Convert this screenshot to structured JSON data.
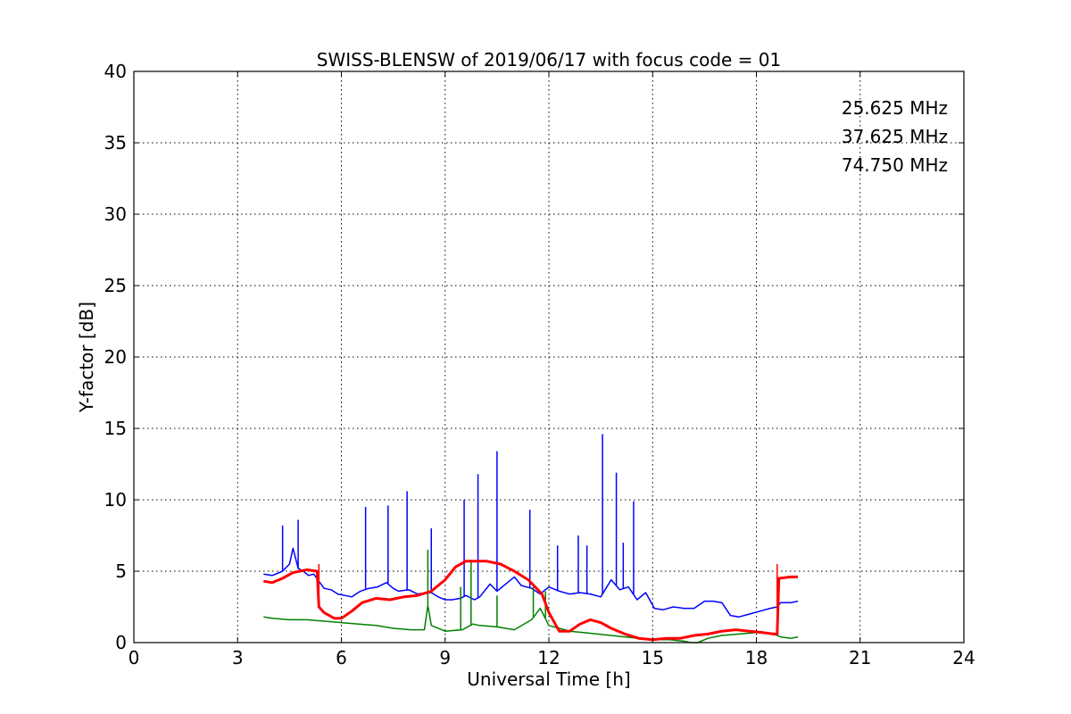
{
  "chart_data": {
    "type": "line",
    "title": "SWISS-BLENSW of 2019/06/17 with focus code = 01",
    "xlabel": "Universal Time [h]",
    "ylabel": "Y-factor [dB]",
    "xlim": [
      0,
      24
    ],
    "ylim": [
      0,
      40
    ],
    "xticks": [
      0,
      3,
      6,
      9,
      12,
      15,
      18,
      21,
      24
    ],
    "xtick_labels": [
      "0",
      "3",
      "6",
      "9",
      "12",
      "15",
      "18",
      "21",
      "24"
    ],
    "yticks": [
      0,
      5,
      10,
      15,
      20,
      25,
      30,
      35,
      40
    ],
    "ytick_labels": [
      "0",
      "5",
      "10",
      "15",
      "20",
      "25",
      "30",
      "35",
      "40"
    ],
    "grid": true,
    "legend_position": "top-right",
    "series": [
      {
        "name": "25.625 MHz",
        "color": "#0000ff",
        "x": [
          3.75,
          4.0,
          4.3,
          4.5,
          4.6,
          4.75,
          4.9,
          5.05,
          5.2,
          5.35,
          5.5,
          5.7,
          5.9,
          6.1,
          6.3,
          6.55,
          6.8,
          7.05,
          7.3,
          7.5,
          7.65,
          7.95,
          8.2,
          8.45,
          8.6,
          8.8,
          9.0,
          9.2,
          9.45,
          9.6,
          9.85,
          10.0,
          10.3,
          10.5,
          10.75,
          11.0,
          11.2,
          11.5,
          11.75,
          12.0,
          12.3,
          12.6,
          12.9,
          13.2,
          13.5,
          13.8,
          14.05,
          14.3,
          14.55,
          14.8,
          15.05,
          15.3,
          15.6,
          15.9,
          16.2,
          16.5,
          16.75,
          17.0,
          17.25,
          17.5,
          17.8,
          18.1,
          18.4,
          18.6,
          18.7,
          19.0,
          19.2
        ],
        "y": [
          4.8,
          4.7,
          5.0,
          5.5,
          6.6,
          5.2,
          5.0,
          4.7,
          4.8,
          4.3,
          3.8,
          3.7,
          3.4,
          3.3,
          3.2,
          3.6,
          3.8,
          3.9,
          4.2,
          3.8,
          3.6,
          3.7,
          3.4,
          3.5,
          3.5,
          3.2,
          3.0,
          3.0,
          3.1,
          3.3,
          3.0,
          3.2,
          4.1,
          3.6,
          4.1,
          4.6,
          4.0,
          3.8,
          3.4,
          3.9,
          3.6,
          3.4,
          3.5,
          3.4,
          3.2,
          4.4,
          3.7,
          3.9,
          3.0,
          3.5,
          2.4,
          2.3,
          2.5,
          2.4,
          2.4,
          2.9,
          2.9,
          2.8,
          1.9,
          1.8,
          2.0,
          2.2,
          2.4,
          2.5,
          2.8,
          2.8,
          2.9
        ],
        "spikes_x": [
          4.3,
          4.75,
          6.7,
          7.35,
          7.9,
          8.6,
          9.55,
          9.95,
          10.5,
          11.45,
          12.25,
          12.85,
          13.1,
          13.55,
          13.95,
          14.15,
          14.45
        ],
        "spikes_y": [
          8.2,
          8.6,
          9.5,
          9.6,
          10.6,
          8.0,
          10.0,
          11.8,
          13.4,
          9.3,
          6.8,
          7.5,
          6.8,
          14.6,
          11.9,
          7.0,
          9.9
        ]
      },
      {
        "name": "37.625 MHz",
        "color": "#008000",
        "x": [
          3.75,
          4.0,
          4.5,
          5.0,
          5.5,
          6.0,
          6.5,
          7.0,
          7.5,
          8.0,
          8.4,
          8.5,
          8.6,
          9.0,
          9.5,
          9.8,
          10.0,
          10.5,
          11.0,
          11.5,
          11.75,
          12.0,
          12.3,
          12.6,
          13.0,
          13.4,
          13.8,
          14.2,
          14.6,
          15.0,
          15.5,
          15.9,
          16.1,
          16.3,
          16.6,
          17.0,
          17.5,
          18.0,
          18.5,
          18.7,
          19.0,
          19.2
        ],
        "y": [
          1.8,
          1.7,
          1.6,
          1.6,
          1.5,
          1.4,
          1.3,
          1.2,
          1.0,
          0.9,
          0.9,
          2.6,
          1.2,
          0.8,
          0.9,
          1.3,
          1.2,
          1.1,
          0.9,
          1.6,
          2.4,
          1.2,
          1.0,
          0.8,
          0.7,
          0.6,
          0.5,
          0.4,
          0.3,
          0.2,
          0.2,
          0.1,
          0.0,
          0.0,
          0.3,
          0.5,
          0.6,
          0.7,
          0.6,
          0.4,
          0.3,
          0.4
        ],
        "spikes_x": [
          8.5,
          9.45,
          9.75,
          10.5,
          11.55,
          11.9
        ],
        "spikes_y": [
          6.5,
          3.9,
          5.8,
          3.3,
          3.9,
          3.6
        ]
      },
      {
        "name": "74.750 MHz",
        "color": "#ff0000",
        "x": [
          3.75,
          4.0,
          4.3,
          4.6,
          5.0,
          5.3,
          5.35,
          5.5,
          5.8,
          6.0,
          6.3,
          6.6,
          7.0,
          7.4,
          7.8,
          8.2,
          8.6,
          9.0,
          9.3,
          9.6,
          9.8,
          10.2,
          10.6,
          11.0,
          11.4,
          11.8,
          12.0,
          12.3,
          12.6,
          12.9,
          13.2,
          13.5,
          13.8,
          14.2,
          14.6,
          15.0,
          15.4,
          15.8,
          16.2,
          16.6,
          17.0,
          17.4,
          17.8,
          18.2,
          18.5,
          18.6,
          18.65,
          19.0,
          19.2
        ],
        "y": [
          4.3,
          4.2,
          4.5,
          4.9,
          5.1,
          5.0,
          2.5,
          2.1,
          1.7,
          1.7,
          2.2,
          2.8,
          3.1,
          3.0,
          3.2,
          3.3,
          3.6,
          4.4,
          5.3,
          5.7,
          5.7,
          5.7,
          5.5,
          5.0,
          4.4,
          3.4,
          2.1,
          0.8,
          0.8,
          1.3,
          1.6,
          1.4,
          1.0,
          0.6,
          0.3,
          0.2,
          0.3,
          0.3,
          0.5,
          0.6,
          0.8,
          0.9,
          0.8,
          0.7,
          0.6,
          0.6,
          4.5,
          4.6,
          4.6
        ],
        "spikes_x": [
          5.35,
          18.6
        ],
        "spikes_y": [
          5.5,
          5.5
        ]
      }
    ]
  }
}
